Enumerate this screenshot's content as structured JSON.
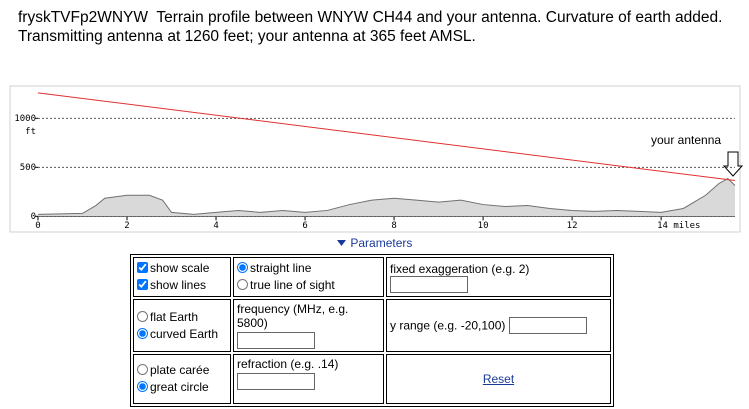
{
  "header": {
    "text": "fryskTVFp2WNYW  Terrain profile between WNYW CH44 and your antenna. Curvature of earth added. Transmitting antenna at 1260 feet; your antenna at 365 feet AMSL."
  },
  "chart_data": {
    "type": "line",
    "y_unit": "ft",
    "annotation": "your antenna",
    "xlim": [
      0,
      15.66
    ],
    "ylim": [
      -160,
      1330
    ],
    "xticks": [
      0,
      2,
      4,
      6,
      8,
      10,
      12,
      {
        "value": 14,
        "label": "14 miles"
      }
    ],
    "yticks": [
      0,
      500,
      1000
    ],
    "grid": true,
    "series": [
      {
        "color": "#707070",
        "fill": "#d9d9d9",
        "x": [
          0,
          1,
          1.3,
          1.5,
          2,
          2.5,
          2.8,
          3,
          3.5,
          4,
          4.5,
          5,
          5.5,
          6,
          6.5,
          7,
          7.5,
          8,
          8.5,
          9,
          9.5,
          10,
          10.5,
          11,
          11.5,
          12,
          12.5,
          13,
          13.5,
          14,
          14.5,
          15,
          15.3,
          15.5,
          15.66
        ],
        "values": [
          20,
          30,
          110,
          185,
          215,
          215,
          165,
          40,
          20,
          40,
          60,
          40,
          60,
          40,
          60,
          120,
          165,
          185,
          165,
          145,
          165,
          120,
          100,
          110,
          80,
          60,
          50,
          60,
          50,
          40,
          80,
          215,
          335,
          385,
          315
        ]
      },
      {
        "color": "#e03030",
        "x": [
          0,
          15.66
        ],
        "values": [
          1260,
          365
        ]
      }
    ]
  },
  "form": {
    "toggle": "Parameters",
    "show_scale": {
      "label": "show scale",
      "checked": true
    },
    "show_lines": {
      "label": "show lines",
      "checked": true
    },
    "straight_line": {
      "label": "straight line",
      "checked": true
    },
    "true_line": {
      "label": "true line of sight",
      "checked": false
    },
    "exaggeration": {
      "label": "fixed exaggeration (e.g. 2)"
    },
    "flat_earth": {
      "label": "flat Earth",
      "checked": false
    },
    "curved_earth": {
      "label": "curved Earth",
      "checked": true
    },
    "frequency": {
      "label": "frequency (MHz, e.g. 5800)"
    },
    "y_range": {
      "label": "y range (e.g. -20,100)"
    },
    "plate_caree": {
      "label": "plate carée",
      "checked": false
    },
    "great_circle": {
      "label": "great circle",
      "checked": true
    },
    "refraction": {
      "label": "refraction (e.g. .14)"
    },
    "reset": "Reset"
  }
}
